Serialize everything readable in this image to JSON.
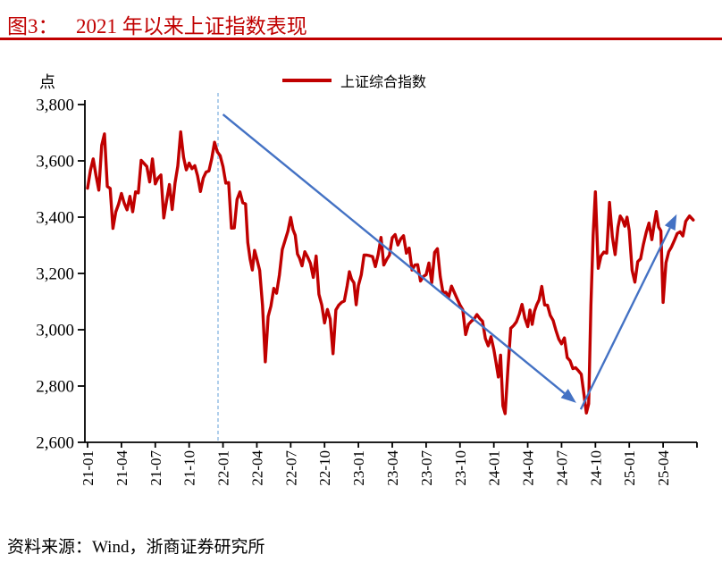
{
  "figure": {
    "label": "图3：",
    "title": "2021 年以来上证指数表现",
    "source": "资料来源：Wind，浙商证券研究所",
    "accent_color": "#C00000"
  },
  "legend": {
    "label": "上证综合指数",
    "color": "#C00000"
  },
  "chart_data": {
    "type": "line",
    "title": "2021 年以来上证指数表现",
    "ylabel": "点",
    "ylim": [
      2600,
      3800
    ],
    "y_ticks": [
      3800,
      3600,
      3400,
      3200,
      3000,
      2800,
      2600
    ],
    "x_ticks": [
      "21-01",
      "21-04",
      "21-07",
      "21-10",
      "22-01",
      "22-04",
      "22-07",
      "22-10",
      "23-01",
      "23-04",
      "23-07",
      "23-10",
      "24-01",
      "24-04",
      "24-07",
      "24-10",
      "25-01",
      "25-04"
    ],
    "grid": false,
    "legend_position": "top-center",
    "series": [
      {
        "name": "上证综合指数",
        "color": "#C00000",
        "monthly_values": [
          {
            "m": "2021-01",
            "v": [
              3503,
              3566,
              3607,
              3547
            ]
          },
          {
            "m": "2021-02",
            "v": [
              3496,
              3655,
              3696,
              3509
            ]
          },
          {
            "m": "2021-03",
            "v": [
              3502,
              3360,
              3419,
              3446
            ]
          },
          {
            "m": "2021-04",
            "v": [
              3484,
              3450,
              3426,
              3474
            ]
          },
          {
            "m": "2021-05",
            "v": [
              3419,
              3490,
              3486,
              3602
            ]
          },
          {
            "m": "2021-06",
            "v": [
              3591,
              3580,
              3525,
              3607
            ]
          },
          {
            "m": "2021-07",
            "v": [
              3518,
              3539,
              3550,
              3397
            ]
          },
          {
            "m": "2021-08",
            "v": [
              3458,
              3516,
              3427,
              3522
            ]
          },
          {
            "m": "2021-09",
            "v": [
              3582,
              3703,
              3613,
              3568
            ]
          },
          {
            "m": "2021-10",
            "v": [
              3592,
              3572,
              3583,
              3547
            ]
          },
          {
            "m": "2021-11",
            "v": [
              3491,
              3539,
              3560,
              3564
            ]
          },
          {
            "m": "2021-12",
            "v": [
              3607,
              3666,
              3632,
              3618
            ]
          },
          {
            "m": "2022-01",
            "v": [
              3579,
              3521,
              3523,
              3361
            ]
          },
          {
            "m": "2022-02",
            "v": [
              3362,
              3463,
              3490,
              3451
            ]
          },
          {
            "m": "2022-03",
            "v": [
              3447,
              3310,
              3251,
              3212,
              3282
            ]
          },
          {
            "m": "2022-04",
            "v": [
              3252,
              3211,
              3086,
              2886
            ]
          },
          {
            "m": "2022-05",
            "v": [
              3047,
              3084,
              3147,
              3130
            ]
          },
          {
            "m": "2022-06",
            "v": [
              3195,
              3285,
              3317,
              3350
            ]
          },
          {
            "m": "2022-07",
            "v": [
              3399,
              3356,
              3336,
              3269,
              3253
            ]
          },
          {
            "m": "2022-08",
            "v": [
              3227,
              3277,
              3258,
              3236
            ]
          },
          {
            "m": "2022-09",
            "v": [
              3186,
              3262,
              3126,
              3088
            ]
          },
          {
            "m": "2022-10",
            "v": [
              3024,
              3072,
              3038,
              2915
            ]
          },
          {
            "m": "2022-11",
            "v": [
              3070,
              3087,
              3097,
              3102
            ]
          },
          {
            "m": "2022-12",
            "v": [
              3156,
              3206,
              3179,
              3167,
              3089
            ]
          },
          {
            "m": "2023-01",
            "v": [
              3157,
              3195,
              3265,
              3265
            ]
          },
          {
            "m": "2023-02",
            "v": [
              3263,
              3260,
              3224,
              3267
            ]
          },
          {
            "m": "2023-03",
            "v": [
              3328,
              3230,
              3250,
              3265
            ]
          },
          {
            "m": "2023-04",
            "v": [
              3327,
              3338,
              3301,
              3323
            ]
          },
          {
            "m": "2023-05",
            "v": [
              3334,
              3272,
              3290,
              3212
            ]
          },
          {
            "m": "2023-06",
            "v": [
              3230,
              3231,
              3173,
              3189
            ]
          },
          {
            "m": "2023-07",
            "v": [
              3196,
              3237,
              3167,
              3275
            ]
          },
          {
            "m": "2023-08",
            "v": [
              3288,
              3189,
              3131,
              3133
            ]
          },
          {
            "m": "2023-09",
            "v": [
              3116,
              3155,
              3132,
              3110
            ]
          },
          {
            "m": "2023-10",
            "v": [
              3088,
              3071,
              2983,
              3019
            ]
          },
          {
            "m": "2023-11",
            "v": [
              3030,
              3038,
              3054,
              3040
            ]
          },
          {
            "m": "2023-12",
            "v": [
              3030,
              2969,
              2943,
              2975
            ]
          },
          {
            "m": "2024-01",
            "v": [
              2929,
              2882,
              2832,
              2910,
              2730
            ]
          },
          {
            "m": "2024-02",
            "v": [
              2702,
              2865,
              3005,
              3015
            ]
          },
          {
            "m": "2024-03",
            "v": [
              3028,
              3055,
              3090,
              3041
            ]
          },
          {
            "m": "2024-04",
            "v": [
              3011,
              3070,
              3019,
              3065,
              3089
            ]
          },
          {
            "m": "2024-05",
            "v": [
              3105,
              3154,
              3088,
              3087
            ]
          },
          {
            "m": "2024-06",
            "v": [
              3051,
              3033,
              2998,
              2967
            ]
          },
          {
            "m": "2024-07",
            "v": [
              2950,
              2971,
              2901,
              2890
            ]
          },
          {
            "m": "2024-08",
            "v": [
              2862,
              2865,
              2854,
              2842
            ]
          },
          {
            "m": "2024-09",
            "v": [
              2766,
              2704,
              2737,
              3088,
              3336
            ]
          },
          {
            "m": "2024-10",
            "v": [
              3490,
              3218,
              3262,
              3276
            ]
          },
          {
            "m": "2024-11",
            "v": [
              3272,
              3452,
              3330,
              3267
            ]
          },
          {
            "m": "2024-12",
            "v": [
              3364,
              3404,
              3391,
              3368,
              3400
            ]
          },
          {
            "m": "2025-01",
            "v": [
              3352,
              3211,
              3169,
              3242
            ]
          },
          {
            "m": "2025-02",
            "v": [
              3252,
              3303,
              3346,
              3379
            ]
          },
          {
            "m": "2025-03",
            "v": [
              3320,
              3373,
              3420,
              3365,
              3351
            ]
          },
          {
            "m": "2025-04",
            "v": [
              3097,
              3238,
              3277,
              3295
            ]
          },
          {
            "m": "2025-05",
            "v": [
              3317,
              3342,
              3348,
              3333
            ]
          },
          {
            "m": "2025-06",
            "v": [
              3385,
              3404,
              3390
            ]
          }
        ]
      }
    ],
    "annotations": {
      "dashed_vline": {
        "month_index": 11.56,
        "month": "2021-12",
        "color": "#9DC3E6"
      },
      "arrows": [
        {
          "direction": "down",
          "color": "#4472C4",
          "from": {
            "month_index": 12.0,
            "value": 3765
          },
          "to": {
            "month_index": 43.3,
            "value": 2740
          }
        },
        {
          "direction": "up",
          "color": "#4472C4",
          "from": {
            "month_index": 43.7,
            "value": 2717
          },
          "to": {
            "month_index": 52.2,
            "value": 3410
          }
        }
      ]
    }
  }
}
